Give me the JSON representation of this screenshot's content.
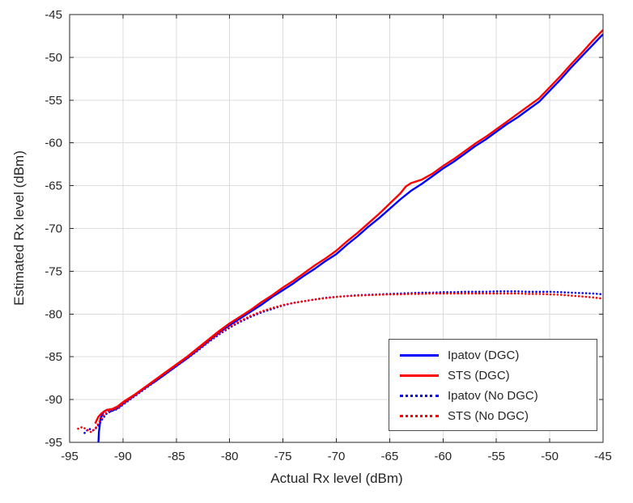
{
  "figure": {
    "background": "#ffffff"
  },
  "chart_data": {
    "type": "line",
    "title": "",
    "xlabel": "Actual Rx level (dBm)",
    "ylabel": "Estimated Rx level (dBm)",
    "xlim": [
      -95,
      -45
    ],
    "ylim": [
      -95,
      -45
    ],
    "xticks": [
      -95,
      -90,
      -85,
      -80,
      -75,
      -70,
      -65,
      -60,
      -55,
      -50,
      -45
    ],
    "yticks": [
      -95,
      -90,
      -85,
      -80,
      -75,
      -70,
      -65,
      -60,
      -55,
      -50,
      -45
    ],
    "grid": true,
    "legend_position": "inside-lower-right",
    "colors": {
      "blue": "#0000ff",
      "red": "#ff0000",
      "grid": "#dcdcdc",
      "axis": "#262626"
    },
    "series": [
      {
        "name": "Ipatov (DGC)",
        "color": "#0000ff",
        "style": "solid",
        "x": [
          -92.3,
          -92.25,
          -92.1,
          -91.8,
          -91.5,
          -91.2,
          -91.0,
          -90.5,
          -90,
          -89,
          -88,
          -87,
          -86,
          -85,
          -84,
          -83,
          -82,
          -81,
          -80,
          -79,
          -78,
          -77,
          -76,
          -75,
          -74,
          -73,
          -72,
          -71,
          -70,
          -69,
          -68,
          -67,
          -66,
          -65,
          -64,
          -63,
          -62,
          -61,
          -60,
          -59,
          -58,
          -57,
          -56,
          -55,
          -54,
          -53,
          -52,
          -51,
          -50,
          -49,
          -48,
          -47,
          -46,
          -45
        ],
        "y": [
          -95,
          -93.8,
          -92.2,
          -91.4,
          -91.2,
          -91.4,
          -91.3,
          -91.0,
          -90.5,
          -89.6,
          -88.7,
          -87.9,
          -87.0,
          -86.1,
          -85.2,
          -84.2,
          -83.2,
          -82.2,
          -81.3,
          -80.5,
          -79.7,
          -78.9,
          -78.0,
          -77.2,
          -76.4,
          -75.5,
          -74.7,
          -73.8,
          -73.0,
          -71.9,
          -70.9,
          -69.8,
          -68.8,
          -67.7,
          -66.6,
          -65.6,
          -64.8,
          -63.9,
          -63.0,
          -62.2,
          -61.3,
          -60.4,
          -59.6,
          -58.7,
          -57.8,
          -57.0,
          -56.1,
          -55.2,
          -53.9,
          -52.6,
          -51.2,
          -49.9,
          -48.6,
          -47.3
        ]
      },
      {
        "name": "STS (DGC)",
        "color": "#ff0000",
        "style": "solid",
        "x": [
          -92.6,
          -92.3,
          -92,
          -91.5,
          -91,
          -90.5,
          -90,
          -89,
          -88,
          -87,
          -86,
          -85,
          -84,
          -83,
          -82,
          -81,
          -80,
          -79,
          -78,
          -77,
          -76,
          -75,
          -74,
          -73,
          -72,
          -71,
          -70,
          -69,
          -68,
          -67,
          -66,
          -65,
          -64,
          -63.5,
          -63,
          -62,
          -61,
          -60,
          -59,
          -58,
          -57,
          -56,
          -55,
          -54,
          -53,
          -52,
          -51,
          -50,
          -49,
          -48,
          -47,
          -46,
          -45
        ],
        "y": [
          -92.8,
          -92.0,
          -91.6,
          -91.2,
          -91.1,
          -90.8,
          -90.3,
          -89.5,
          -88.6,
          -87.7,
          -86.8,
          -85.9,
          -85.0,
          -84.0,
          -83.0,
          -82.0,
          -81.1,
          -80.3,
          -79.5,
          -78.6,
          -77.8,
          -76.9,
          -76.1,
          -75.2,
          -74.3,
          -73.5,
          -72.6,
          -71.5,
          -70.5,
          -69.4,
          -68.3,
          -67.1,
          -65.9,
          -65.1,
          -64.7,
          -64.3,
          -63.6,
          -62.7,
          -61.9,
          -61.0,
          -60.1,
          -59.3,
          -58.4,
          -57.5,
          -56.6,
          -55.7,
          -54.8,
          -53.5,
          -52.2,
          -50.8,
          -49.5,
          -48.1,
          -46.8
        ]
      },
      {
        "name": "Ipatov (No DGC)",
        "color": "#0000ff",
        "style": "dotted",
        "x": [
          -93.6,
          -93.2,
          -92.8,
          -92.4,
          -92,
          -91.5,
          -91,
          -90.5,
          -90,
          -89,
          -88,
          -87,
          -86,
          -85,
          -84,
          -83,
          -82,
          -81,
          -80,
          -79,
          -78,
          -77,
          -76,
          -75,
          -74,
          -73,
          -72,
          -71,
          -70,
          -69,
          -68,
          -67,
          -66,
          -65,
          -64,
          -63,
          -62,
          -61,
          -60,
          -59,
          -58,
          -57,
          -56,
          -55,
          -54,
          -53,
          -52,
          -51,
          -50,
          -49,
          -48,
          -47,
          -46,
          -45
        ],
        "y": [
          -93.9,
          -93.4,
          -93.6,
          -93.2,
          -92.4,
          -91.6,
          -91.3,
          -91.1,
          -90.6,
          -89.7,
          -88.8,
          -87.9,
          -87.0,
          -86.1,
          -85.2,
          -84.3,
          -83.3,
          -82.4,
          -81.6,
          -80.9,
          -80.3,
          -79.8,
          -79.4,
          -79.0,
          -78.7,
          -78.5,
          -78.3,
          -78.1,
          -78.0,
          -77.9,
          -77.8,
          -77.75,
          -77.7,
          -77.65,
          -77.6,
          -77.55,
          -77.5,
          -77.5,
          -77.45,
          -77.45,
          -77.4,
          -77.4,
          -77.4,
          -77.35,
          -77.35,
          -77.35,
          -77.4,
          -77.4,
          -77.4,
          -77.45,
          -77.5,
          -77.55,
          -77.6,
          -77.7
        ]
      },
      {
        "name": "STS (No DGC)",
        "color": "#ff0000",
        "style": "dotted",
        "x": [
          -94.2,
          -93.8,
          -93.4,
          -93,
          -92.6,
          -92.2,
          -91.8,
          -91.4,
          -91,
          -90.5,
          -90,
          -89,
          -88,
          -87,
          -86,
          -85,
          -84,
          -83,
          -82,
          -81,
          -80,
          -79,
          -78,
          -77,
          -76,
          -75,
          -74,
          -73,
          -72,
          -71,
          -70,
          -69,
          -68,
          -67,
          -66,
          -65,
          -64,
          -63,
          -62,
          -61,
          -60,
          -59,
          -58,
          -57,
          -56,
          -55,
          -54,
          -53,
          -52,
          -51,
          -50,
          -49,
          -48,
          -47,
          -46,
          -45
        ],
        "y": [
          -93.4,
          -93.2,
          -93.5,
          -93.8,
          -93.4,
          -92.6,
          -91.8,
          -91.4,
          -91.2,
          -91.0,
          -90.5,
          -89.6,
          -88.7,
          -87.8,
          -86.9,
          -86.0,
          -85.1,
          -84.2,
          -83.2,
          -82.3,
          -81.5,
          -80.8,
          -80.2,
          -79.7,
          -79.3,
          -78.95,
          -78.7,
          -78.5,
          -78.3,
          -78.15,
          -78.0,
          -77.9,
          -77.85,
          -77.8,
          -77.75,
          -77.7,
          -77.7,
          -77.65,
          -77.65,
          -77.6,
          -77.6,
          -77.6,
          -77.6,
          -77.6,
          -77.6,
          -77.6,
          -77.6,
          -77.6,
          -77.65,
          -77.65,
          -77.7,
          -77.75,
          -77.85,
          -77.95,
          -78.05,
          -78.2
        ]
      }
    ]
  }
}
